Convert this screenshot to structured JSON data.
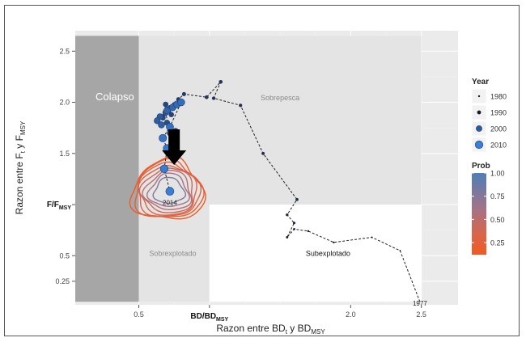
{
  "chart_data": {
    "type": "scatter",
    "xlabel_main": "Razon entre BD",
    "xlabel_sub1": "t",
    "xlabel_mid": " y  BD",
    "xlabel_sub2": "MSY",
    "ylabel_main": "Razon entre F",
    "ylabel_sub1": "t",
    "ylabel_mid": "  y  F",
    "ylabel_sub2": "MSY",
    "xlim": [
      0.05,
      2.76
    ],
    "ylim": [
      0.02,
      2.7
    ],
    "x_ticks": [
      0.5,
      1.0,
      2.0,
      2.5
    ],
    "x_tick_labels": [
      "0.5",
      "",
      "2.0",
      "2.5"
    ],
    "x_special_label": {
      "main": "BD/BD",
      "sub": "MSY"
    },
    "y_ticks": [
      0.25,
      0.5,
      1.0,
      1.5,
      2.0,
      2.5
    ],
    "y_tick_labels": [
      "0.25",
      "0.5",
      "",
      "1.5",
      "2.0",
      "2.5"
    ],
    "y_special_label": {
      "main": "F/F",
      "sub": "MSY"
    },
    "grid": true,
    "regions": [
      {
        "label": "Colapso",
        "x": [
          0.0,
          0.5
        ],
        "y": [
          0.0,
          2.65
        ]
      },
      {
        "label": "Sobrepesca",
        "x": [
          0.5,
          2.5
        ],
        "y": [
          1.0,
          2.65
        ]
      },
      {
        "label": "Sobrexplotado",
        "x": [
          0.5,
          1.0
        ],
        "y": [
          0.0,
          1.0
        ]
      },
      {
        "label": "Subexplotado",
        "x": [
          1.0,
          2.5
        ],
        "y": [
          0.0,
          1.0
        ]
      }
    ],
    "trajectory": [
      {
        "year": 1977,
        "x": 2.49,
        "y": 0.0
      },
      {
        "year": 1978,
        "x": 2.35,
        "y": 0.55
      },
      {
        "year": 1979,
        "x": 2.15,
        "y": 0.68
      },
      {
        "year": 1980,
        "x": 1.88,
        "y": 0.63
      },
      {
        "year": 1981,
        "x": 1.7,
        "y": 0.74
      },
      {
        "year": 1982,
        "x": 1.6,
        "y": 0.76
      },
      {
        "year": 1983,
        "x": 1.55,
        "y": 0.68
      },
      {
        "year": 1984,
        "x": 1.6,
        "y": 0.82
      },
      {
        "year": 1985,
        "x": 1.55,
        "y": 0.9
      },
      {
        "year": 1986,
        "x": 1.62,
        "y": 1.05
      },
      {
        "year": 1987,
        "x": 1.38,
        "y": 1.5
      },
      {
        "year": 1988,
        "x": 1.22,
        "y": 1.97
      },
      {
        "year": 1989,
        "x": 1.03,
        "y": 2.04
      },
      {
        "year": 1990,
        "x": 1.08,
        "y": 2.2
      },
      {
        "year": 1991,
        "x": 0.98,
        "y": 2.05
      },
      {
        "year": 1992,
        "x": 0.82,
        "y": 2.08
      },
      {
        "year": 1993,
        "x": 0.78,
        "y": 2.03
      },
      {
        "year": 1994,
        "x": 0.75,
        "y": 1.98
      },
      {
        "year": 1995,
        "x": 0.72,
        "y": 1.95
      },
      {
        "year": 1996,
        "x": 0.73,
        "y": 1.88
      },
      {
        "year": 1997,
        "x": 0.69,
        "y": 1.98
      },
      {
        "year": 1998,
        "x": 0.67,
        "y": 1.85
      },
      {
        "year": 1999,
        "x": 0.7,
        "y": 1.8
      },
      {
        "year": 2000,
        "x": 0.76,
        "y": 1.72
      },
      {
        "year": 2001,
        "x": 0.72,
        "y": 1.7
      },
      {
        "year": 2002,
        "x": 0.69,
        "y": 1.9
      },
      {
        "year": 2003,
        "x": 0.65,
        "y": 1.86
      },
      {
        "year": 2004,
        "x": 0.63,
        "y": 1.82
      },
      {
        "year": 2005,
        "x": 0.66,
        "y": 1.78
      },
      {
        "year": 2006,
        "x": 0.7,
        "y": 1.92
      },
      {
        "year": 2007,
        "x": 0.74,
        "y": 1.95
      },
      {
        "year": 2008,
        "x": 0.77,
        "y": 1.98
      },
      {
        "year": 2009,
        "x": 0.8,
        "y": 2.0
      },
      {
        "year": 2010,
        "x": 0.72,
        "y": 1.76
      },
      {
        "year": 2011,
        "x": 0.67,
        "y": 1.65
      },
      {
        "year": 2012,
        "x": 0.7,
        "y": 1.55
      },
      {
        "year": 2013,
        "x": 0.68,
        "y": 1.35
      },
      {
        "year": 2014,
        "x": 0.72,
        "y": 1.13
      }
    ],
    "point_labels": [
      {
        "year": 1977,
        "text": "1977"
      },
      {
        "year": 2014,
        "text": "2014"
      }
    ],
    "arrow_at": {
      "x": 0.75,
      "y": 1.53
    },
    "probability_contours": {
      "center": [
        0.72,
        1.13
      ],
      "levels": [
        0.15,
        0.25,
        0.35,
        0.45,
        0.55,
        0.65,
        0.75,
        0.85
      ],
      "base_radius": [
        0.26,
        0.33
      ]
    },
    "legend_year": {
      "title": "Year",
      "items": [
        {
          "label": "1980",
          "size": 1.2
        },
        {
          "label": "1990",
          "size": 2.4
        },
        {
          "label": "2000",
          "size": 3.6
        },
        {
          "label": "2010",
          "size": 4.8
        }
      ]
    },
    "legend_prob": {
      "title": "Prob",
      "ticks": [
        "1.00",
        "0.75",
        "0.50",
        "0.25"
      ],
      "tick_values": [
        1.0,
        0.75,
        0.5,
        0.25
      ],
      "range": [
        0.12,
        1.0
      ]
    },
    "colors": {
      "panel_background": "#ebebeb",
      "grid": "#ffffff",
      "colapso": "#a6a6a6",
      "zone_light": "#e4e4e4",
      "zone_white": "#ffffff",
      "trajectory_line": "#222222",
      "early_point": "#1a1a2e",
      "late_point": "#3a7fd5",
      "prob_high": "#4e7fb8",
      "prob_mid": "#c56b69",
      "prob_low": "#f05a22",
      "arrow": "#000000"
    }
  }
}
